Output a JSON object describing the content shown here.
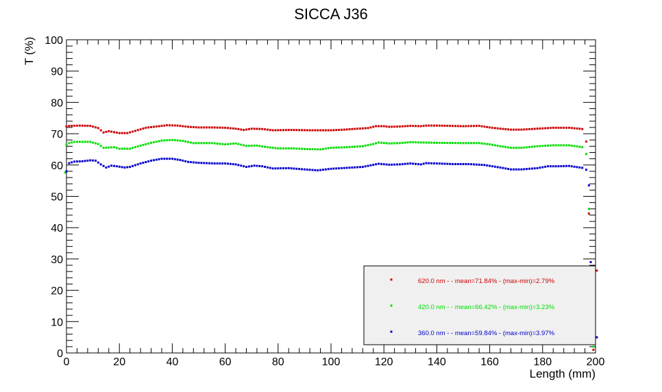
{
  "chart_data": {
    "type": "scatter",
    "title": "SICCA J36",
    "xlabel": "Length (mm)",
    "ylabel": "T (%)",
    "xlim": [
      0,
      200
    ],
    "ylim": [
      0,
      100
    ],
    "x_ticks": [
      "0",
      "20",
      "40",
      "60",
      "80",
      "100",
      "120",
      "140",
      "160",
      "180",
      "200"
    ],
    "y_ticks": [
      "0",
      "10",
      "20",
      "30",
      "40",
      "50",
      "60",
      "70",
      "80",
      "90",
      "100"
    ],
    "grid": false,
    "legend_position": "bottom-right",
    "series": [
      {
        "name": "620.0 nm -  - mean=71.84% - (max-min)=2.79%",
        "color": "#cc0000",
        "knots": [
          [
            0,
            72.3
          ],
          [
            1,
            72.5
          ],
          [
            5,
            72.6
          ],
          [
            9,
            72.5
          ],
          [
            12,
            71.8
          ],
          [
            14,
            70.4
          ],
          [
            16,
            70.8
          ],
          [
            18,
            70.5
          ],
          [
            20,
            70.2
          ],
          [
            23,
            70.2
          ],
          [
            26,
            70.9
          ],
          [
            30,
            71.9
          ],
          [
            34,
            72.3
          ],
          [
            38,
            72.7
          ],
          [
            42,
            72.6
          ],
          [
            46,
            72.2
          ],
          [
            50,
            72.0
          ],
          [
            55,
            72.0
          ],
          [
            60,
            71.9
          ],
          [
            64,
            71.6
          ],
          [
            67,
            71.2
          ],
          [
            70,
            71.6
          ],
          [
            74,
            71.5
          ],
          [
            78,
            71.1
          ],
          [
            85,
            71.2
          ],
          [
            92,
            71.1
          ],
          [
            100,
            71.1
          ],
          [
            105,
            71.3
          ],
          [
            110,
            71.6
          ],
          [
            114,
            71.8
          ],
          [
            117,
            72.4
          ],
          [
            120,
            72.4
          ],
          [
            122,
            72.2
          ],
          [
            126,
            72.3
          ],
          [
            130,
            72.5
          ],
          [
            134,
            72.4
          ],
          [
            136,
            72.6
          ],
          [
            140,
            72.6
          ],
          [
            145,
            72.5
          ],
          [
            150,
            72.4
          ],
          [
            156,
            72.5
          ],
          [
            160,
            72.0
          ],
          [
            164,
            71.6
          ],
          [
            168,
            71.3
          ],
          [
            172,
            71.3
          ],
          [
            178,
            71.6
          ],
          [
            184,
            71.9
          ],
          [
            190,
            71.9
          ],
          [
            195,
            71.5
          ]
        ],
        "edge_points": [
          [
            196.5,
            67.5
          ],
          [
            197.5,
            44.5
          ],
          [
            198.2,
            10.0
          ],
          [
            199.2,
            1.0
          ],
          [
            200.5,
            26.3
          ]
        ]
      },
      {
        "name": "420.0 nm -  - mean=66.42% - (max-min)=3.23%",
        "color": "#00dd00",
        "knots": [
          [
            0,
            66.5
          ],
          [
            1,
            67.0
          ],
          [
            3,
            67.4
          ],
          [
            7,
            67.4
          ],
          [
            9,
            67.4
          ],
          [
            12,
            66.7
          ],
          [
            14,
            65.5
          ],
          [
            16,
            65.6
          ],
          [
            18,
            65.7
          ],
          [
            20,
            65.2
          ],
          [
            24,
            65.2
          ],
          [
            28,
            66.2
          ],
          [
            32,
            67.1
          ],
          [
            36,
            67.8
          ],
          [
            40,
            68.0
          ],
          [
            44,
            67.7
          ],
          [
            48,
            67.0
          ],
          [
            55,
            67.0
          ],
          [
            60,
            66.6
          ],
          [
            64,
            66.9
          ],
          [
            68,
            66.1
          ],
          [
            72,
            66.2
          ],
          [
            76,
            65.7
          ],
          [
            80,
            65.3
          ],
          [
            86,
            65.3
          ],
          [
            90,
            65.1
          ],
          [
            96,
            65.0
          ],
          [
            100,
            65.5
          ],
          [
            106,
            65.7
          ],
          [
            112,
            66.0
          ],
          [
            116,
            66.7
          ],
          [
            118,
            67.2
          ],
          [
            122,
            66.9
          ],
          [
            126,
            67.0
          ],
          [
            130,
            67.3
          ],
          [
            134,
            67.2
          ],
          [
            140,
            67.1
          ],
          [
            150,
            67.0
          ],
          [
            156,
            67.0
          ],
          [
            160,
            66.6
          ],
          [
            164,
            66.0
          ],
          [
            168,
            65.5
          ],
          [
            172,
            65.5
          ],
          [
            178,
            66.0
          ],
          [
            184,
            66.3
          ],
          [
            190,
            66.3
          ],
          [
            195,
            65.7
          ]
        ],
        "edge_points": [
          [
            -0.5,
            57.6
          ],
          [
            196.5,
            63.5
          ],
          [
            197.5,
            46.0
          ],
          [
            198.2,
            12.0
          ],
          [
            199.2,
            2.0
          ]
        ]
      },
      {
        "name": "360.0 nm -  - mean=59.84% - (max-min)=3.97%",
        "color": "#0000cc",
        "knots": [
          [
            0,
            58.0
          ],
          [
            1,
            60.6
          ],
          [
            3,
            61.1
          ],
          [
            6,
            61.2
          ],
          [
            9,
            61.5
          ],
          [
            11,
            61.4
          ],
          [
            13,
            60.2
          ],
          [
            15,
            59.2
          ],
          [
            17,
            59.8
          ],
          [
            19,
            59.6
          ],
          [
            22,
            59.2
          ],
          [
            24,
            59.4
          ],
          [
            28,
            60.5
          ],
          [
            32,
            61.4
          ],
          [
            36,
            62.0
          ],
          [
            40,
            62.0
          ],
          [
            43,
            61.6
          ],
          [
            46,
            61.0
          ],
          [
            50,
            60.7
          ],
          [
            56,
            60.5
          ],
          [
            60,
            60.5
          ],
          [
            64,
            60.2
          ],
          [
            68,
            59.4
          ],
          [
            71,
            59.8
          ],
          [
            74,
            59.6
          ],
          [
            78,
            58.9
          ],
          [
            84,
            59.0
          ],
          [
            90,
            58.6
          ],
          [
            95,
            58.3
          ],
          [
            100,
            58.8
          ],
          [
            106,
            59.1
          ],
          [
            112,
            59.4
          ],
          [
            118,
            60.4
          ],
          [
            122,
            60.1
          ],
          [
            126,
            60.2
          ],
          [
            130,
            60.5
          ],
          [
            134,
            60.2
          ],
          [
            136,
            60.6
          ],
          [
            140,
            60.5
          ],
          [
            146,
            60.3
          ],
          [
            152,
            60.3
          ],
          [
            158,
            60.0
          ],
          [
            164,
            59.2
          ],
          [
            168,
            58.6
          ],
          [
            172,
            58.6
          ],
          [
            178,
            59.0
          ],
          [
            182,
            59.6
          ],
          [
            186,
            59.6
          ],
          [
            190,
            59.7
          ],
          [
            195,
            59.1
          ]
        ],
        "edge_points": [
          [
            196.5,
            58.5
          ],
          [
            197.5,
            53.5
          ],
          [
            198.2,
            29.0
          ],
          [
            199.2,
            3.5
          ],
          [
            200.5,
            5.0
          ]
        ]
      }
    ]
  }
}
